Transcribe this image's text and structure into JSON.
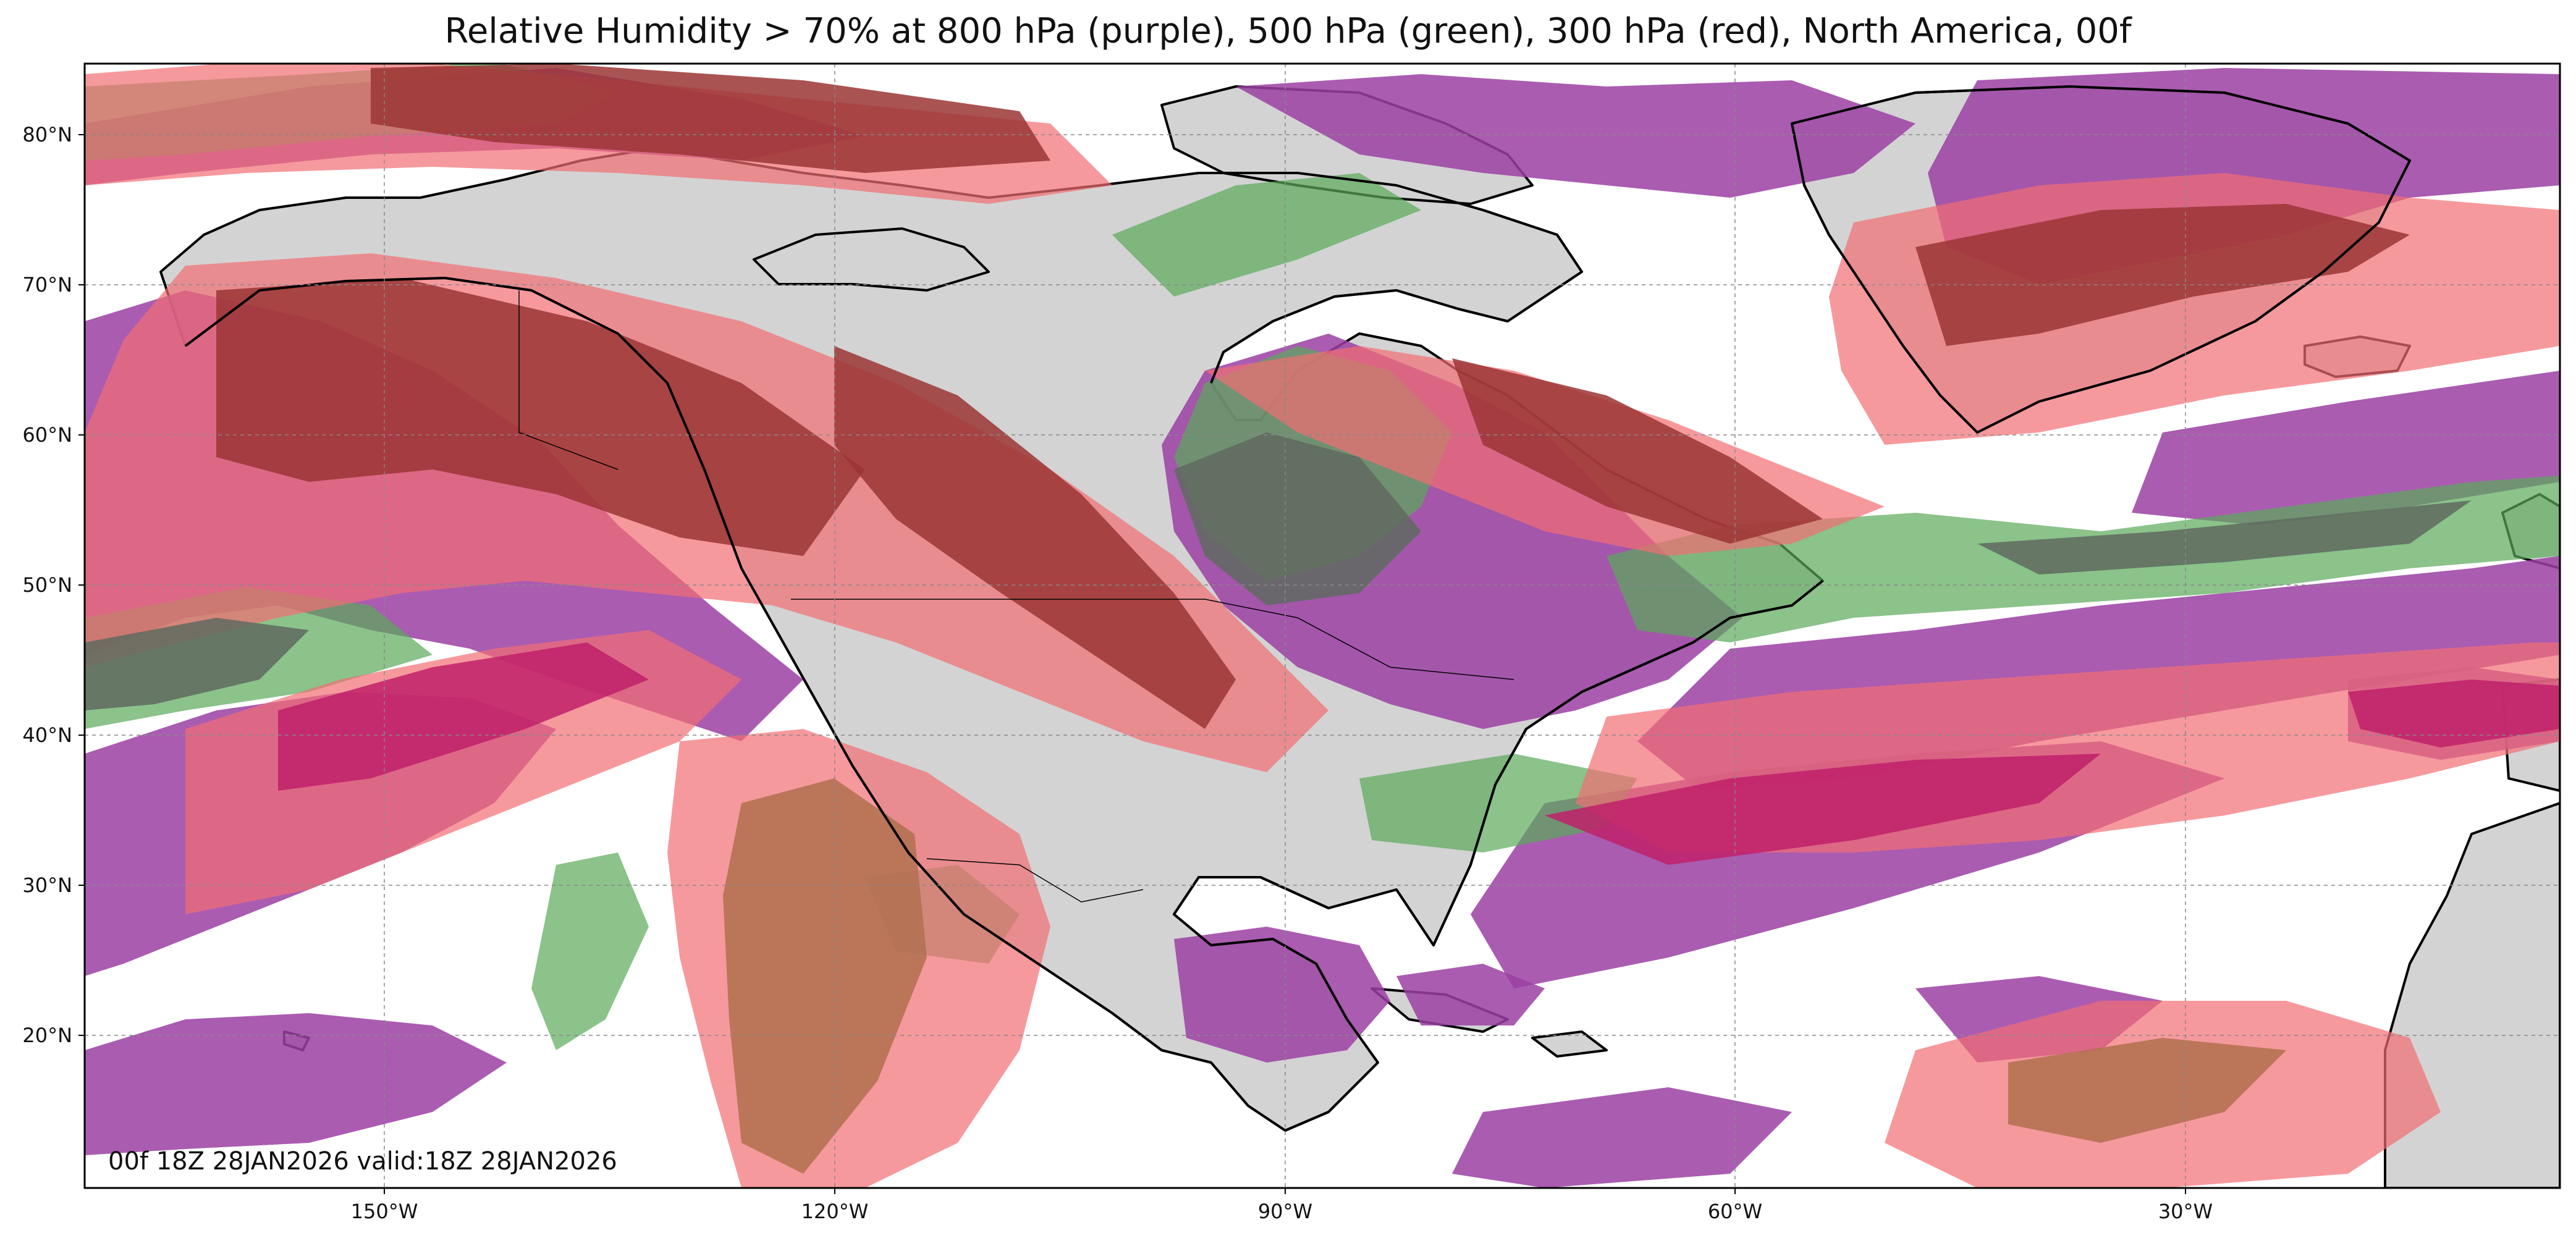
{
  "title": "Relative Humidity > 70% at 800 hPa (purple), 500 hPa (green), 300 hPa (red), North America, 00f",
  "map": {
    "region": "North America",
    "lon_ticks": [
      "150°W",
      "120°W",
      "90°W",
      "60°W",
      "30°W"
    ],
    "lat_ticks": [
      "80°N",
      "70°N",
      "60°N",
      "50°N",
      "40°N",
      "30°N",
      "20°N"
    ],
    "gridlines": true,
    "land_color": "#d3d3d3",
    "ocean_color": "#ffffff",
    "coastline_color": "#000000"
  },
  "layers": [
    {
      "level": "800 hPa",
      "color": "#9b3fa3"
    },
    {
      "level": "500 hPa",
      "color": "#5aa95a"
    },
    {
      "level": "300 hPa",
      "color": "#f26d73"
    }
  ],
  "overlap_colors": {
    "800_500": "#5f6a5f",
    "800_300": "#c0206a",
    "500_300": "#b0704f",
    "all": "#9b3535"
  },
  "timestamp": "00f 18Z 28JAN2026 valid:18Z 28JAN2026"
}
